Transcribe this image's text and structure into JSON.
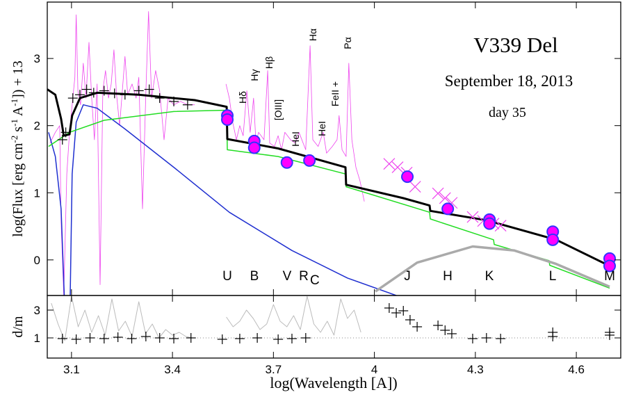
{
  "chart_data": [
    {
      "type": "line",
      "title": "V339 Del",
      "subtitle": "September 18, 2013",
      "day_label": "day 35",
      "y_label_parts": [
        "log(Flux [erg cm",
        "-2",
        " s",
        "-1",
        " A",
        "-1",
        "]) + 13"
      ],
      "xlim": [
        3.028,
        4.732
      ],
      "ylim": [
        -0.53,
        3.84
      ],
      "xticks": [
        3.1,
        3.4,
        3.7,
        4,
        4.3,
        4.6
      ],
      "yticks": [
        0,
        1,
        2,
        3
      ],
      "line_labels": [
        "Hδ",
        "Hγ",
        "Hβ",
        "[OIII]",
        "HeI",
        "Hα",
        "HeI",
        "FeII +",
        "Pα"
      ],
      "filter_labels": [
        "U",
        "B",
        "V",
        "R",
        "J",
        "H",
        "K",
        "L",
        "M"
      ],
      "r_subscript": "C",
      "series": [
        {
          "style": "line",
          "color": "#ee44ee",
          "width": 0.8,
          "x": [
            3.036,
            3.052,
            3.065,
            3.069,
            3.077,
            3.086,
            3.094,
            3.102,
            3.11,
            3.114,
            3.119,
            3.127,
            3.135,
            3.143,
            3.152,
            3.16,
            3.168,
            3.176,
            3.185,
            3.193,
            3.201,
            3.21,
            3.218,
            3.226,
            3.234,
            3.243,
            3.251,
            3.259,
            3.267,
            3.28,
            3.292,
            3.3,
            3.311,
            3.321,
            3.329,
            3.338,
            3.35,
            3.362,
            3.375,
            3.387,
            3.404,
            3.424,
            3.445,
            3.466,
            3.51,
            3.559,
            3.569,
            3.579,
            3.59,
            3.6,
            3.61,
            3.621,
            3.631,
            3.641,
            3.648,
            3.656,
            3.672,
            3.683,
            3.689,
            3.703,
            3.714,
            3.724,
            3.734,
            3.751,
            3.765,
            3.776,
            3.796,
            3.809,
            3.817,
            3.833,
            3.848,
            3.858,
            3.875,
            3.889,
            3.895,
            3.904,
            3.916,
            3.924,
            3.933,
            3.945,
            3.957,
            3.97
          ],
          "values": [
            1.74,
            1.9,
            2.0,
            0.56,
            -0.53,
            1.28,
            1.9,
            2.31,
            2.72,
            3.65,
            2.52,
            2.31,
            2.93,
            2.41,
            3.24,
            2.41,
            1.79,
            2.62,
            -0.37,
            2.52,
            2.82,
            2.41,
            2.62,
            3.13,
            2.46,
            2.0,
            2.52,
            3.03,
            2.46,
            2.62,
            2.41,
            2.72,
            0.76,
            2.52,
            3.7,
            2.41,
            2.82,
            2.52,
            1.79,
            2.41,
            2.31,
            2.36,
            2.31,
            2.31,
            null,
            2.62,
            2.41,
            2.05,
            1.79,
            2.0,
            1.85,
            2.52,
            1.9,
            2.41,
            1.74,
            1.9,
            1.79,
            2.82,
            1.74,
            1.69,
            1.85,
            1.64,
            1.9,
            1.79,
            1.74,
            1.9,
            1.64,
            3.19,
            1.79,
            1.69,
            1.9,
            1.59,
            1.69,
            1.79,
            2.15,
            1.64,
            1.54,
            2.93,
            1.79,
            1.38,
            1.18,
            0.87
          ]
        },
        {
          "style": "line",
          "color": "#1f2fd0",
          "width": 1.5,
          "x": [
            3.032,
            3.052,
            3.069,
            3.079,
            3.096,
            3.102,
            3.114,
            3.135,
            3.176,
            3.259,
            3.404,
            3.569,
            3.755,
            3.92,
            4.065
          ],
          "values": [
            1.9,
            1.54,
            0.76,
            -0.6,
            -0.6,
            1.28,
            2.05,
            2.31,
            2.26,
            1.95,
            1.38,
            0.71,
            0.14,
            -0.27,
            -0.53
          ]
        },
        {
          "style": "line",
          "color": "#22dd22",
          "width": 1.5,
          "x": [
            3.032,
            3.094,
            3.197,
            3.404,
            3.561,
            3.563,
            3.714,
            3.914,
            3.916,
            4.164,
            4.166,
            4.354,
            4.356,
            4.519,
            4.521,
            4.699
          ],
          "values": [
            1.69,
            1.9,
            2.08,
            2.21,
            2.23,
            1.64,
            1.54,
            1.28,
            1.09,
            0.71,
            0.61,
            0.3,
            0.23,
            -0.01,
            -0.08,
            -0.42
          ]
        },
        {
          "style": "line",
          "color": "#aaaaaa",
          "width": 3.5,
          "x": [
            4.003,
            4.127,
            4.292,
            4.416,
            4.54,
            4.699
          ],
          "values": [
            -0.47,
            -0.04,
            0.2,
            0.14,
            -0.06,
            -0.4
          ]
        },
        {
          "style": "line",
          "color": "#000000",
          "width": 3,
          "x": [
            3.028,
            3.052,
            3.069,
            3.077,
            3.094,
            3.102,
            3.125,
            3.176,
            3.3,
            3.466,
            3.561,
            3.563,
            3.714,
            3.914,
            3.916,
            4.086,
            4.164,
            4.166,
            4.333,
            4.54,
            4.699
          ],
          "values": [
            2.54,
            2.46,
            2.1,
            1.85,
            1.87,
            2.15,
            2.41,
            2.49,
            2.46,
            2.38,
            2.28,
            1.8,
            1.66,
            1.38,
            1.12,
            0.92,
            0.81,
            0.73,
            0.59,
            0.3,
            -0.09
          ]
        },
        {
          "style": "plus",
          "color": "#000000",
          "x": [
            3.073,
            3.083,
            3.104,
            3.125,
            3.145,
            3.166,
            3.197,
            3.228,
            3.259,
            3.3,
            3.331,
            3.362,
            3.404,
            3.445
          ],
          "values": [
            1.79,
            1.9,
            2.41,
            2.46,
            2.54,
            2.49,
            2.52,
            2.48,
            2.46,
            2.52,
            2.54,
            2.41,
            2.36,
            2.31
          ]
        },
        {
          "style": "cross",
          "color": "#ee44ee",
          "x": [
            4.044,
            4.069,
            4.096,
            4.121,
            4.189,
            4.21,
            4.23,
            4.292,
            4.323,
            4.354,
            4.375
          ],
          "values": [
            1.43,
            1.38,
            1.3,
            1.09,
            0.99,
            0.92,
            0.85,
            0.64,
            0.58,
            0.54,
            0.51
          ]
        },
        {
          "style": "circle",
          "color": "#ff00ff",
          "x": [
            3.563,
            3.563,
            3.643,
            3.643,
            3.74,
            3.807,
            4.098,
            4.218,
            4.342,
            4.342,
            4.53,
            4.53,
            4.699,
            4.699
          ],
          "values": [
            2.15,
            2.09,
            1.77,
            1.67,
            1.45,
            1.48,
            1.24,
            0.76,
            0.6,
            0.54,
            0.42,
            0.3,
            0.02,
            -0.09
          ]
        }
      ]
    },
    {
      "type": "line",
      "x_label": "log(Wavelength [A])",
      "y_label": "d/m",
      "xlim": [
        3.028,
        4.732
      ],
      "ylim": [
        -0.45,
        4.05
      ],
      "xticks": [
        3.1,
        3.4,
        3.7,
        4,
        4.3,
        4.6
      ],
      "yticks": [
        1,
        3
      ],
      "hline": 1,
      "series": [
        {
          "style": "line",
          "color": "#bbbbbb",
          "width": 1,
          "x": [
            3.04,
            3.06,
            3.08,
            3.1,
            3.12,
            3.14,
            3.16,
            3.18,
            3.2,
            3.22,
            3.24,
            3.26,
            3.28,
            3.3,
            3.32,
            3.34,
            3.36,
            3.38,
            3.4,
            3.42,
            3.44,
            3.46,
            3.51,
            3.56,
            3.58,
            3.6,
            3.62,
            3.64,
            3.66,
            3.68,
            3.7,
            3.72,
            3.74,
            3.76,
            3.78,
            3.8,
            3.82,
            3.84,
            3.86,
            3.88,
            3.9,
            3.92,
            3.94,
            3.96
          ],
          "values": [
            3.5,
            2.0,
            0.8,
            4.0,
            1.8,
            3.0,
            1.4,
            2.6,
            1.2,
            3.8,
            1.5,
            2.2,
            1.1,
            3.6,
            1.3,
            2.0,
            1.0,
            1.6,
            1.2,
            1.4,
            1.1,
            1.0,
            null,
            2.5,
            1.8,
            2.2,
            3.0,
            2.4,
            1.6,
            2.0,
            3.4,
            2.2,
            1.8,
            2.6,
            1.6,
            4.0,
            2.0,
            1.4,
            2.2,
            1.2,
            3.8,
            2.4,
            3.0,
            1.4
          ]
        },
        {
          "style": "plus",
          "color": "#000000",
          "x": [
            3.073,
            3.114,
            3.155,
            3.197,
            3.238,
            3.279,
            3.321,
            3.362,
            3.404,
            3.455,
            3.548,
            3.6,
            3.652,
            3.714,
            3.755,
            3.796,
            4.044,
            4.065,
            4.086,
            4.106,
            4.127,
            4.189,
            4.21,
            4.23,
            4.292,
            4.333,
            4.375,
            4.53,
            4.53,
            4.699,
            4.699
          ],
          "values": [
            0.95,
            0.9,
            1.0,
            0.95,
            1.05,
            0.95,
            1.1,
            1.0,
            0.95,
            1.0,
            0.9,
            0.95,
            1.0,
            0.9,
            0.95,
            1.0,
            3.15,
            2.8,
            2.95,
            2.3,
            1.8,
            1.9,
            1.55,
            1.3,
            0.95,
            1.0,
            0.95,
            1.4,
            1.1,
            1.4,
            1.2
          ]
        }
      ]
    }
  ]
}
